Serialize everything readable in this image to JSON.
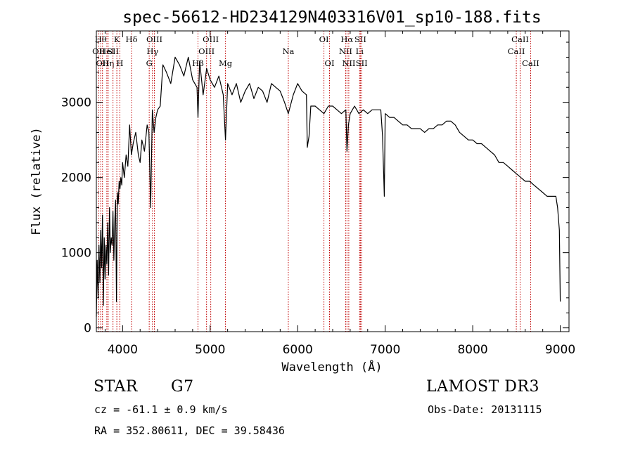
{
  "chart_data": {
    "type": "line",
    "title": "spec-56612-HD234129N403316V01_sp10-188.fits",
    "xlabel": "Wavelength (Å)",
    "ylabel": "Flux (relative)",
    "xlim": [
      3700,
      9100
    ],
    "ylim": [
      -50,
      3950
    ],
    "x_ticks": [
      4000,
      5000,
      6000,
      7000,
      8000,
      9000
    ],
    "x_tick_labels": [
      "4000",
      "5000",
      "6000",
      "7000",
      "8000",
      "9000"
    ],
    "y_ticks": [
      0,
      1000,
      2000,
      3000
    ],
    "y_tick_labels": [
      "0",
      "1000",
      "2000",
      "3000"
    ],
    "grid": false,
    "series": [
      {
        "name": "flux",
        "x": [
          3700,
          3710,
          3720,
          3730,
          3740,
          3750,
          3760,
          3770,
          3780,
          3790,
          3800,
          3810,
          3820,
          3830,
          3840,
          3850,
          3860,
          3870,
          3880,
          3890,
          3900,
          3910,
          3920,
          3930,
          3940,
          3950,
          3960,
          3970,
          3980,
          3990,
          4000,
          4020,
          4040,
          4060,
          4080,
          4100,
          4120,
          4150,
          4180,
          4200,
          4220,
          4250,
          4280,
          4300,
          4320,
          4340,
          4360,
          4380,
          4400,
          4430,
          4460,
          4500,
          4550,
          4600,
          4650,
          4700,
          4750,
          4800,
          4850,
          4861,
          4880,
          4920,
          4960,
          5000,
          5050,
          5100,
          5150,
          5175,
          5200,
          5250,
          5300,
          5350,
          5400,
          5450,
          5500,
          5550,
          5600,
          5650,
          5700,
          5750,
          5800,
          5850,
          5893,
          5950,
          6000,
          6050,
          6100,
          6110,
          6130,
          6150,
          6200,
          6250,
          6300,
          6350,
          6400,
          6450,
          6500,
          6550,
          6563,
          6580,
          6600,
          6650,
          6700,
          6750,
          6800,
          6850,
          6900,
          6950,
          6970,
          6990,
          7000,
          7050,
          7100,
          7150,
          7200,
          7250,
          7300,
          7350,
          7400,
          7450,
          7500,
          7550,
          7600,
          7650,
          7700,
          7750,
          7800,
          7850,
          7900,
          7950,
          8000,
          8050,
          8100,
          8150,
          8200,
          8250,
          8300,
          8350,
          8400,
          8450,
          8500,
          8550,
          8600,
          8650,
          8700,
          8750,
          8800,
          8850,
          8900,
          8950,
          8970,
          8990,
          9000
        ],
        "y": [
          150,
          900,
          400,
          1100,
          600,
          1300,
          800,
          1500,
          300,
          1200,
          650,
          1100,
          850,
          1400,
          700,
          1600,
          1000,
          1200,
          1100,
          1550,
          900,
          1400,
          1700,
          350,
          1800,
          1650,
          1950,
          1850,
          2000,
          1900,
          2200,
          2000,
          2300,
          2150,
          2700,
          2300,
          2450,
          2600,
          2300,
          2200,
          2500,
          2350,
          2700,
          2600,
          1600,
          2900,
          2600,
          2800,
          2900,
          2950,
          3500,
          3400,
          3250,
          3600,
          3500,
          3350,
          3600,
          3300,
          3200,
          2800,
          3550,
          3100,
          3450,
          3300,
          3200,
          3350,
          3100,
          2500,
          3250,
          3100,
          3250,
          3000,
          3150,
          3250,
          3050,
          3200,
          3150,
          3000,
          3250,
          3200,
          3150,
          3000,
          2850,
          3100,
          3250,
          3150,
          3100,
          2400,
          2550,
          2950,
          2950,
          2900,
          2850,
          2950,
          2950,
          2900,
          2850,
          2900,
          2350,
          2700,
          2850,
          2950,
          2850,
          2900,
          2850,
          2900,
          2900,
          2900,
          2550,
          1750,
          2850,
          2800,
          2800,
          2750,
          2700,
          2700,
          2650,
          2650,
          2650,
          2600,
          2650,
          2650,
          2700,
          2700,
          2750,
          2750,
          2700,
          2600,
          2550,
          2500,
          2500,
          2450,
          2450,
          2400,
          2350,
          2300,
          2200,
          2200,
          2150,
          2100,
          2050,
          2000,
          1950,
          1950,
          1900,
          1850,
          1800,
          1750,
          1750,
          1750,
          1600,
          1300,
          350
        ]
      }
    ],
    "line_markers": [
      {
        "wavelength": 3727,
        "label": "OII",
        "row": 2
      },
      {
        "wavelength": 3750,
        "label": "Hθ",
        "row": 1
      },
      {
        "wavelength": 3770,
        "label": "OII",
        "row": 3
      },
      {
        "wavelength": 3820,
        "label": "HeI",
        "row": 2
      },
      {
        "wavelength": 3835,
        "label": "Hη",
        "row": 3
      },
      {
        "wavelength": 3890,
        "label": "SII",
        "row": 2
      },
      {
        "wavelength": 3934,
        "label": "K",
        "row": 1
      },
      {
        "wavelength": 3968,
        "label": "H",
        "row": 3
      },
      {
        "wavelength": 4102,
        "label": "Hδ",
        "row": 1
      },
      {
        "wavelength": 4304,
        "label": "G",
        "row": 3
      },
      {
        "wavelength": 4341,
        "label": "Hγ",
        "row": 2
      },
      {
        "wavelength": 4363,
        "label": "OIII",
        "row": 1
      },
      {
        "wavelength": 4861,
        "label": "Hβ",
        "row": 3
      },
      {
        "wavelength": 4959,
        "label": "OIII",
        "row": 2
      },
      {
        "wavelength": 5007,
        "label": "OIII",
        "row": 1
      },
      {
        "wavelength": 5175,
        "label": "Mg",
        "row": 3
      },
      {
        "wavelength": 5893,
        "label": "Na",
        "row": 2
      },
      {
        "wavelength": 6300,
        "label": "OI",
        "row": 1
      },
      {
        "wavelength": 6364,
        "label": "OI",
        "row": 3
      },
      {
        "wavelength": 6548,
        "label": "NII",
        "row": 2
      },
      {
        "wavelength": 6563,
        "label": "Hα",
        "row": 1
      },
      {
        "wavelength": 6584,
        "label": "NII",
        "row": 3
      },
      {
        "wavelength": 6708,
        "label": "Li",
        "row": 2
      },
      {
        "wavelength": 6717,
        "label": "SII",
        "row": 1
      },
      {
        "wavelength": 6731,
        "label": "SII",
        "row": 3
      },
      {
        "wavelength": 8498,
        "label": "CaII",
        "row": 2
      },
      {
        "wavelength": 8542,
        "label": "CaII",
        "row": 1
      },
      {
        "wavelength": 8662,
        "label": "CaII",
        "row": 3
      }
    ]
  },
  "info": {
    "class_label": "STAR",
    "subclass": "G7",
    "survey": "LAMOST DR3",
    "cz_text": "cz = -61.1 ± 0.9 km/s",
    "obs_date_text": "Obs-Date: 20131115",
    "coords_text": "RA = 352.80611, DEC =  39.58436"
  },
  "colors": {
    "line": "#000000",
    "marker": "#c00000",
    "axis": "#000000"
  }
}
